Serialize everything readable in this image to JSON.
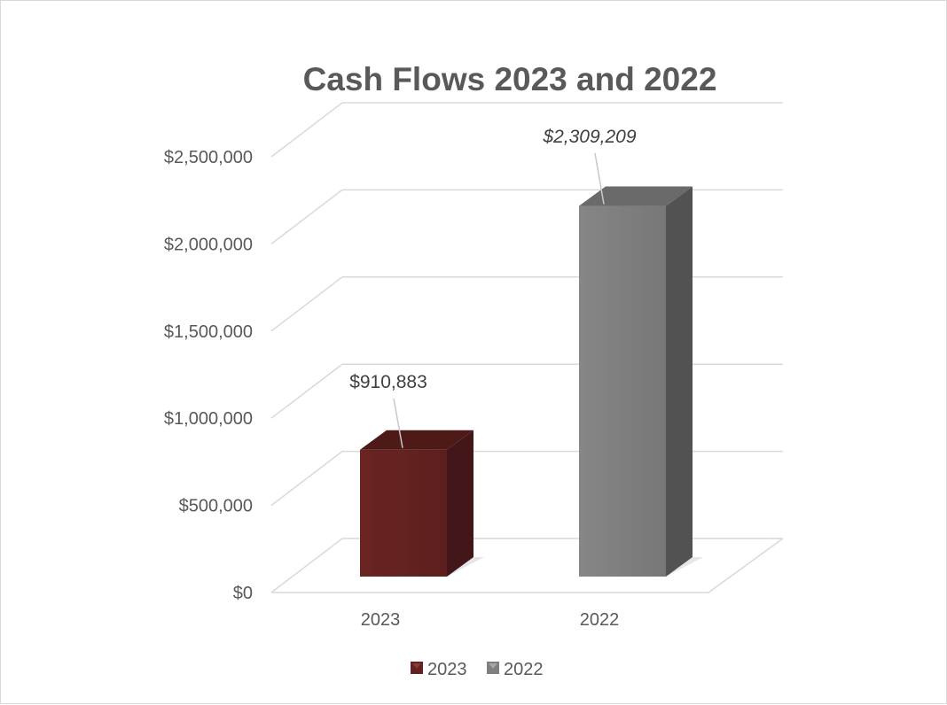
{
  "chart_data": {
    "type": "bar",
    "title": "Cash Flows 2023 and 2022",
    "categories": [
      "2023",
      "2022"
    ],
    "values": [
      910883,
      2309209
    ],
    "data_labels": [
      "$910,883",
      "$2,309,209"
    ],
    "series": [
      {
        "name": "2023",
        "values": [
          910883,
          null
        ]
      },
      {
        "name": "2022",
        "values": [
          null,
          2309209
        ]
      }
    ],
    "ylim": [
      0,
      2500000
    ],
    "yticks": [
      0,
      500000,
      1000000,
      1500000,
      2000000,
      2500000
    ],
    "ytick_labels": [
      "$0",
      "$500,000",
      "$1,000,000",
      "$1,500,000",
      "$2,000,000",
      "$2,500,000"
    ],
    "grid": true,
    "three_d": true,
    "legend_position": "bottom",
    "colors": {
      "2023": "#63211f",
      "2022": "#7f7f7f",
      "grid": "#d9d9d9",
      "text": "#595959"
    }
  }
}
